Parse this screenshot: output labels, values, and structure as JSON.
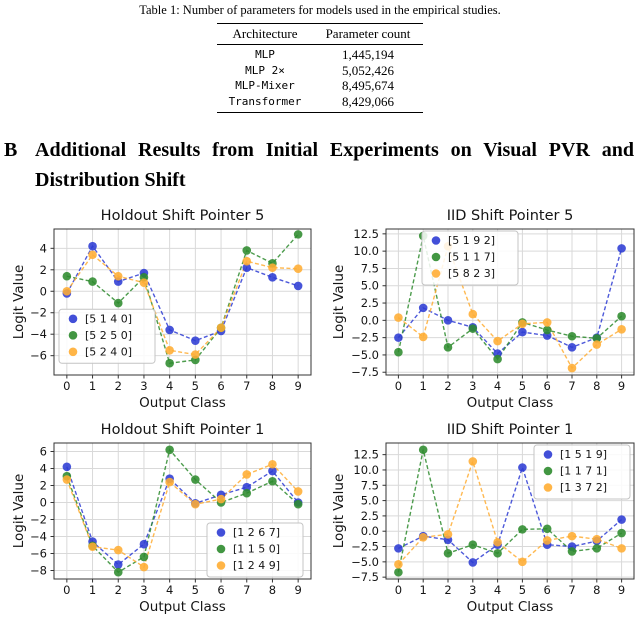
{
  "table": {
    "caption": "Table 1: Number of parameters for models used in the empirical studies.",
    "columns": [
      "Architecture",
      "Parameter count"
    ],
    "rows": [
      [
        "MLP",
        "1,445,194"
      ],
      [
        "MLP 2×",
        "5,052,426"
      ],
      [
        "MLP-Mixer",
        "8,495,674"
      ],
      [
        "Transformer",
        "8,429,066"
      ]
    ]
  },
  "heading": {
    "label": "B",
    "line1": "Additional Results from Initial Experiments on Visual PVR and",
    "line2": "Distribution Shift"
  },
  "colors": {
    "blue": "#2e3cd4",
    "green": "#2e8b2e",
    "orange": "#ffad33",
    "grid": "#d9d9d9",
    "spine": "#333333",
    "text": "#151515"
  },
  "chart_data": [
    {
      "type": "line",
      "title": "Holdout Shift Pointer 5",
      "xlabel": "Output Class",
      "ylabel": "Logit Value",
      "categories": [
        0,
        1,
        2,
        3,
        4,
        5,
        6,
        7,
        8,
        9
      ],
      "yticks": [
        4,
        2,
        0,
        -2,
        -4,
        -6
      ],
      "ylim": [
        -7.8,
        5.8
      ],
      "grid": true,
      "line_style": "dashed",
      "marker": "circle",
      "legend_position": "center-left",
      "series": [
        {
          "name": "[5 1 4 0]",
          "color": "blue",
          "values": [
            -0.2,
            4.2,
            0.9,
            1.7,
            -3.6,
            -4.6,
            -3.7,
            2.2,
            1.3,
            0.5
          ]
        },
        {
          "name": "[5 2 5 0]",
          "color": "green",
          "values": [
            1.4,
            0.9,
            -1.1,
            1.3,
            -6.7,
            -6.4,
            -3.4,
            3.8,
            2.6,
            5.3
          ]
        },
        {
          "name": "[5 2 4 0]",
          "color": "orange",
          "values": [
            0.0,
            3.4,
            1.4,
            0.8,
            -5.5,
            -5.9,
            -3.4,
            2.8,
            2.2,
            2.1
          ]
        }
      ]
    },
    {
      "type": "line",
      "title": "IID Shift Pointer 5",
      "xlabel": "Output Class",
      "ylabel": "Logit Value",
      "categories": [
        0,
        1,
        2,
        3,
        4,
        5,
        6,
        7,
        8,
        9
      ],
      "yticks": [
        12.5,
        10.0,
        7.5,
        5.0,
        2.5,
        0.0,
        -2.5,
        -5.0,
        -7.5
      ],
      "ylim": [
        -7.9,
        13.2
      ],
      "grid": true,
      "line_style": "dashed",
      "marker": "circle",
      "legend_position": "upper-center",
      "series": [
        {
          "name": "[5 1 9 2]",
          "color": "blue",
          "values": [
            -2.5,
            1.8,
            0.0,
            -1.0,
            -4.8,
            -1.7,
            -2.2,
            -3.9,
            -2.5,
            10.4
          ]
        },
        {
          "name": "[5 1 1 7]",
          "color": "green",
          "values": [
            -4.6,
            12.2,
            -3.9,
            -1.2,
            -5.6,
            -0.3,
            -1.4,
            -2.3,
            -2.6,
            0.6
          ]
        },
        {
          "name": "[5 8 2 3]",
          "color": "orange",
          "values": [
            0.4,
            -2.4,
            10.7,
            0.9,
            -3.0,
            -0.5,
            -0.3,
            -6.9,
            -3.5,
            -1.3
          ]
        }
      ]
    },
    {
      "type": "line",
      "title": "Holdout Shift Pointer 1",
      "xlabel": "Output Class",
      "ylabel": "Logit Value",
      "categories": [
        0,
        1,
        2,
        3,
        4,
        5,
        6,
        7,
        8,
        9
      ],
      "yticks": [
        6,
        4,
        2,
        0,
        -2,
        -4,
        -6,
        -8
      ],
      "ylim": [
        -9.0,
        7.0
      ],
      "grid": true,
      "line_style": "dashed",
      "marker": "circle",
      "legend_position": "lower-right",
      "series": [
        {
          "name": "[1 2 6 7]",
          "color": "blue",
          "values": [
            4.2,
            -4.6,
            -7.3,
            -4.9,
            2.8,
            -0.1,
            0.9,
            1.8,
            3.7,
            0.0
          ]
        },
        {
          "name": "[1 1 5 0]",
          "color": "green",
          "values": [
            3.1,
            -5.1,
            -8.2,
            -6.4,
            6.2,
            2.7,
            0.0,
            1.1,
            2.5,
            -0.2
          ]
        },
        {
          "name": "[1 2 4 9]",
          "color": "orange",
          "values": [
            2.7,
            -5.2,
            -5.6,
            -7.6,
            2.4,
            -0.2,
            0.4,
            3.3,
            4.5,
            1.3
          ]
        }
      ]
    },
    {
      "type": "line",
      "title": "IID Shift Pointer 1",
      "xlabel": "Output Class",
      "ylabel": "Logit Value",
      "categories": [
        0,
        1,
        2,
        3,
        4,
        5,
        6,
        7,
        8,
        9
      ],
      "yticks": [
        12.5,
        10.0,
        7.5,
        5.0,
        2.5,
        0.0,
        -2.5,
        -5.0,
        -7.5
      ],
      "ylim": [
        -7.8,
        14.4
      ],
      "grid": true,
      "line_style": "dashed",
      "marker": "circle",
      "legend_position": "upper-right",
      "series": [
        {
          "name": "[1 5 1 9]",
          "color": "blue",
          "values": [
            -2.8,
            -0.8,
            -1.4,
            -5.1,
            -2.2,
            10.4,
            -2.2,
            -2.5,
            -1.6,
            1.9
          ]
        },
        {
          "name": "[1 1 7 1]",
          "color": "green",
          "values": [
            -6.7,
            13.3,
            -3.6,
            -2.2,
            -3.6,
            0.3,
            0.4,
            -3.3,
            -2.8,
            -0.3
          ]
        },
        {
          "name": "[1 3 7 2]",
          "color": "orange",
          "values": [
            -5.4,
            -1.0,
            -0.5,
            11.4,
            -1.8,
            -5.0,
            -1.5,
            -0.8,
            -1.3,
            -2.8
          ]
        }
      ]
    }
  ]
}
